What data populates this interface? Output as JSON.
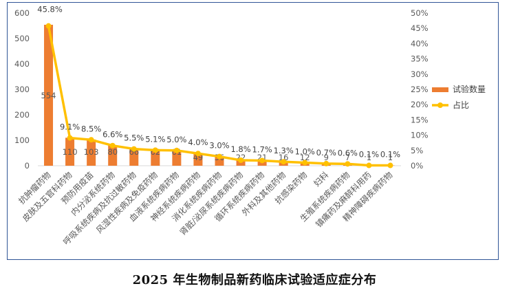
{
  "chart_data": {
    "type": "bar",
    "title": "",
    "categories": [
      "抗肿瘤药物",
      "皮肤及五官科药物",
      "预防用疫苗",
      "内分泌系统药物",
      "呼吸系统疾病及抗过敏药物",
      "风湿性疾病及免疫药物",
      "血液系统疾病药物",
      "神经系统疾病药物",
      "消化系统疾病药物",
      "肾脏/泌尿系统疾病药物",
      "循环系统疾病药物",
      "外科及其他药物",
      "抗感染药物",
      "妇科",
      "生殖系统疾病药物",
      "镇痛药及麻醉科用药",
      "精神障碍疾病药物"
    ],
    "series": [
      {
        "name": "试验数量",
        "type": "bar",
        "axis": "left",
        "color": "#ed7d31",
        "values": [
          554,
          110,
          103,
          80,
          66,
          62,
          61,
          49,
          36,
          22,
          21,
          16,
          12,
          9,
          7,
          1,
          1
        ]
      },
      {
        "name": "占比",
        "type": "line",
        "axis": "right",
        "color": "#ffc000",
        "values": [
          45.8,
          9.1,
          8.5,
          6.6,
          5.5,
          5.1,
          5.0,
          4.0,
          3.0,
          1.8,
          1.7,
          1.3,
          1.0,
          0.7,
          0.6,
          0.1,
          0.1
        ],
        "labels": [
          "45.8%",
          "9.1%",
          "8.5%",
          "6.6%",
          "5.5%",
          "5.1%",
          "5.0%",
          "4.0%",
          "3.0%",
          "1.8%",
          "1.7%",
          "1.3%",
          "1.0%",
          "0.7%",
          "0.6%",
          "0.1%",
          "0.1%"
        ]
      }
    ],
    "y_left": {
      "min": 0,
      "max": 600,
      "ticks": [
        0,
        100,
        200,
        300,
        400,
        500,
        600
      ]
    },
    "y_right": {
      "min": 0,
      "max": 50,
      "ticks": [
        "0%",
        "5%",
        "10%",
        "15%",
        "20%",
        "25%",
        "30%",
        "35%",
        "40%",
        "45%",
        "50%"
      ]
    },
    "grid": false,
    "legend_position": "right"
  },
  "caption": "2025 年生物制品新药临床试验适应症分布"
}
